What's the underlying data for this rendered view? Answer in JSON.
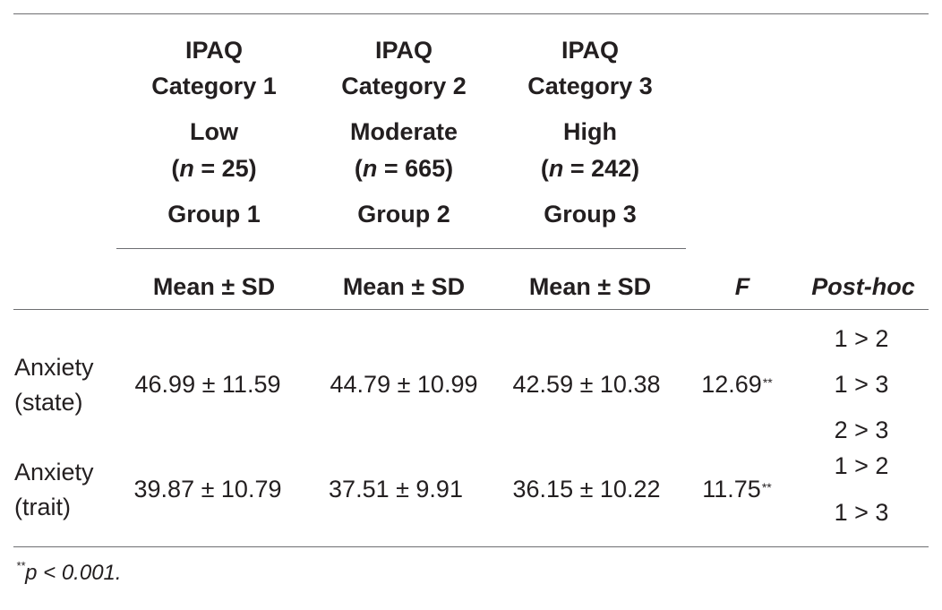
{
  "header": {
    "groups": [
      {
        "line1": "IPAQ",
        "line2": "Category 1",
        "level": "Low",
        "n_open": "(",
        "n_letter": "n",
        "n_rest": " = 25)",
        "group": "Group 1"
      },
      {
        "line1": "IPAQ",
        "line2": "Category 2",
        "level": "Moderate",
        "n_open": "(",
        "n_letter": "n",
        "n_rest": " = 665)",
        "group": "Group 2"
      },
      {
        "line1": "IPAQ",
        "line2": "Category 3",
        "level": "High",
        "n_open": "(",
        "n_letter": "n",
        "n_rest": " = 242)",
        "group": "Group 3"
      }
    ],
    "stat_labels": [
      "Mean ± SD",
      "Mean ± SD",
      "Mean ± SD"
    ],
    "f_label": "F",
    "posthoc_label": "Post-hoc"
  },
  "rows": [
    {
      "label_line1": "Anxiety",
      "label_line2": "(state)",
      "values": [
        "46.99 ± 11.59",
        "44.79 ± 10.99",
        "42.59 ± 10.38"
      ],
      "f": "12.69",
      "f_sig": "**",
      "posthoc": [
        "1 > 2",
        "1 > 3",
        "2 > 3"
      ]
    },
    {
      "label_line1": "Anxiety",
      "label_line2": "(trait)",
      "values": [
        "39.87 ± 10.79",
        "37.51 ± 9.91",
        "36.15 ± 10.22"
      ],
      "f": "11.75",
      "f_sig": "**",
      "posthoc": [
        "1 > 2",
        "1 > 3"
      ]
    }
  ],
  "footnote": {
    "marker": "**",
    "text": "p < 0.001."
  }
}
